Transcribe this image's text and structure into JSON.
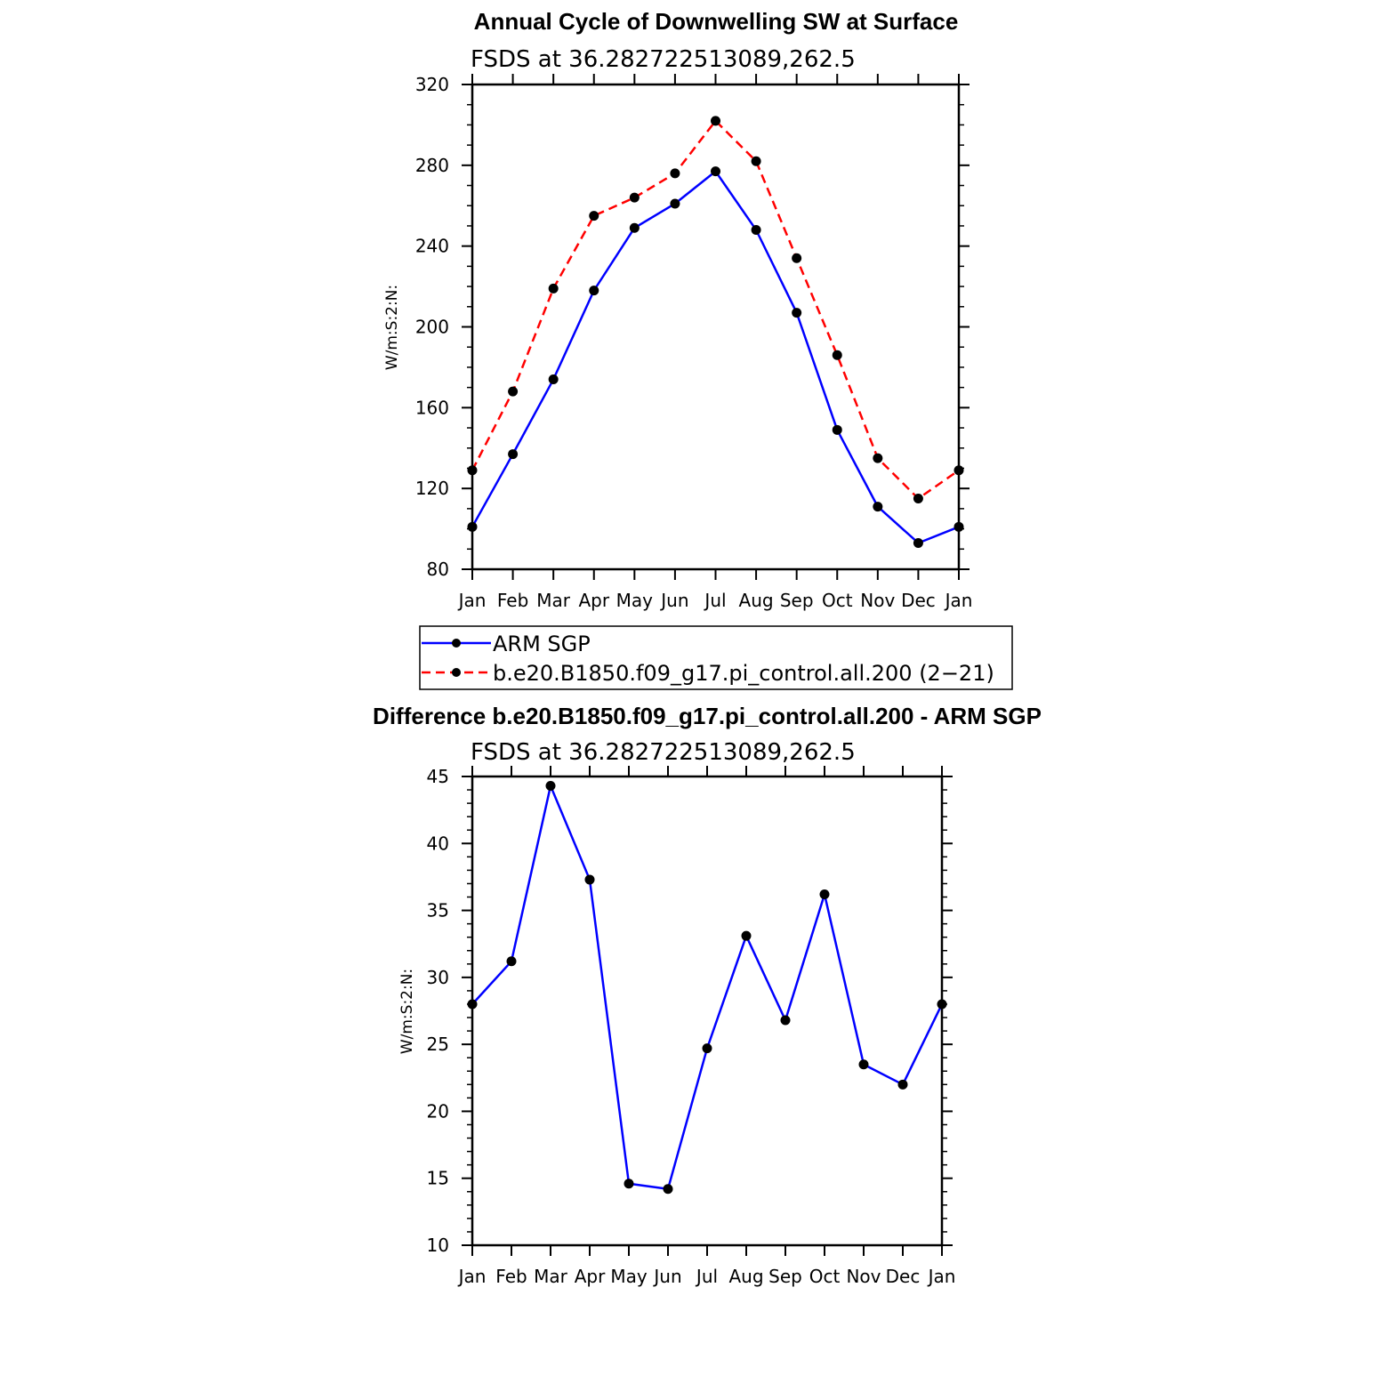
{
  "chart_data": [
    {
      "type": "line",
      "title": "Annual Cycle of Downwelling SW at Surface",
      "subtitle": "FSDS at 36.282722513089,262.5",
      "xlabel": "",
      "ylabel": "W/m:S:2:N:",
      "categories": [
        "Jan",
        "Feb",
        "Mar",
        "Apr",
        "May",
        "Jun",
        "Jul",
        "Aug",
        "Sep",
        "Oct",
        "Nov",
        "Dec",
        "Jan"
      ],
      "ylim": [
        80,
        320
      ],
      "yticks": [
        80,
        120,
        160,
        200,
        240,
        280,
        320
      ],
      "series": [
        {
          "name": "ARM SGP",
          "color": "#0000ff",
          "dash": "solid",
          "values": [
            101,
            137,
            174,
            218,
            249,
            261,
            277,
            248,
            207,
            149,
            111,
            93,
            101
          ]
        },
        {
          "name": "b.e20.B1850.f09_g17.pi_control.all.200 (2−21)",
          "color": "#ff0000",
          "dash": "dashed",
          "values": [
            129,
            168,
            219,
            255,
            264,
            276,
            302,
            282,
            234,
            186,
            135,
            115,
            129
          ]
        }
      ],
      "legend": "below"
    },
    {
      "type": "line",
      "title": "Difference b.e20.B1850.f09_g17.pi_control.all.200 - ARM SGP",
      "subtitle": "FSDS at 36.282722513089,262.5",
      "xlabel": "",
      "ylabel": "W/m:S:2:N:",
      "categories": [
        "Jan",
        "Feb",
        "Mar",
        "Apr",
        "May",
        "Jun",
        "Jul",
        "Aug",
        "Sep",
        "Oct",
        "Nov",
        "Dec",
        "Jan"
      ],
      "ylim": [
        10,
        45
      ],
      "yticks": [
        10,
        15,
        20,
        25,
        30,
        35,
        40,
        45
      ],
      "series": [
        {
          "color": "#0000ff",
          "dash": "solid",
          "values": [
            28.0,
            31.2,
            44.3,
            37.3,
            14.6,
            14.2,
            24.7,
            33.1,
            26.8,
            36.2,
            23.5,
            22.0,
            28.0
          ]
        }
      ]
    }
  ]
}
